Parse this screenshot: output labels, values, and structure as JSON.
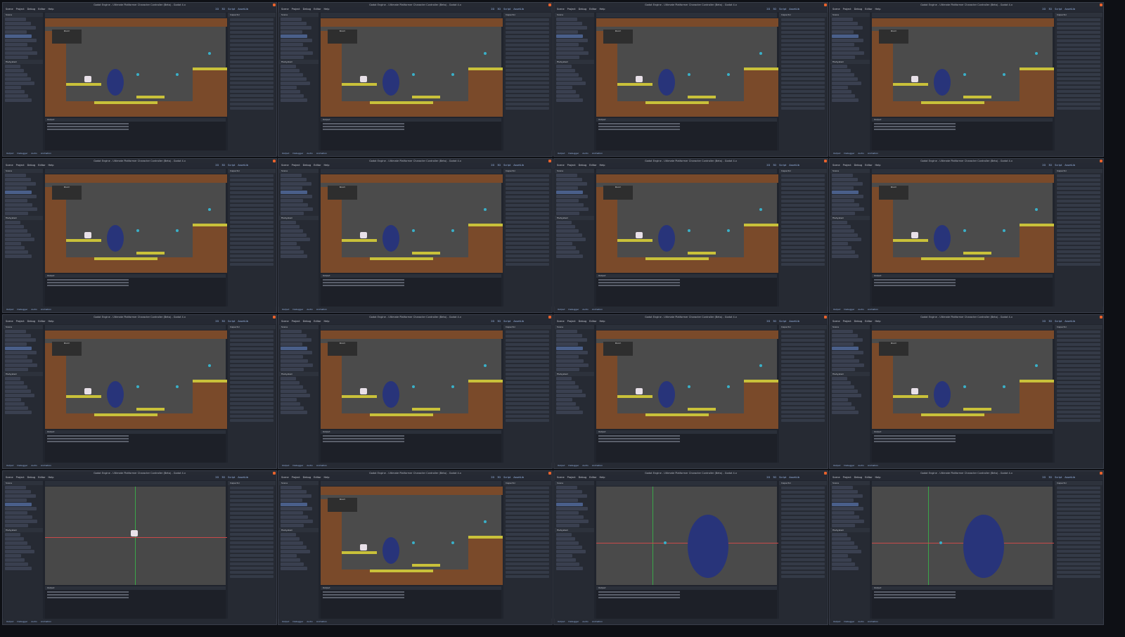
{
  "window_title": "Godot Engine - Ultimate Platformer Character Controller (Beta) - Godot 4.x",
  "menu": [
    "Scene",
    "Project",
    "Debug",
    "Editor",
    "Help"
  ],
  "workspaces": [
    "2D",
    "3D",
    "Script",
    "AssetLib"
  ],
  "docks": {
    "scene": "Scene",
    "filesystem": "FileSystem",
    "inspector": "Inspector",
    "output": "Output"
  },
  "bottom_tabs": [
    "Output",
    "Debugger",
    "Audio",
    "Animation"
  ],
  "level_labels": {
    "room": "Room",
    "state": "StateMachine"
  },
  "accent": "#e8622c",
  "tiles": [
    {
      "view": "level"
    },
    {
      "view": "level"
    },
    {
      "view": "level"
    },
    {
      "view": "level"
    },
    {
      "view": "level"
    },
    {
      "view": "level"
    },
    {
      "view": "level"
    },
    {
      "view": "level"
    },
    {
      "view": "level"
    },
    {
      "view": "level_wide"
    },
    {
      "view": "level_wide"
    },
    {
      "view": "level_zoom"
    },
    {
      "view": "character"
    },
    {
      "view": "level_wide"
    },
    {
      "view": "hook"
    },
    {
      "view": "hook"
    }
  ]
}
